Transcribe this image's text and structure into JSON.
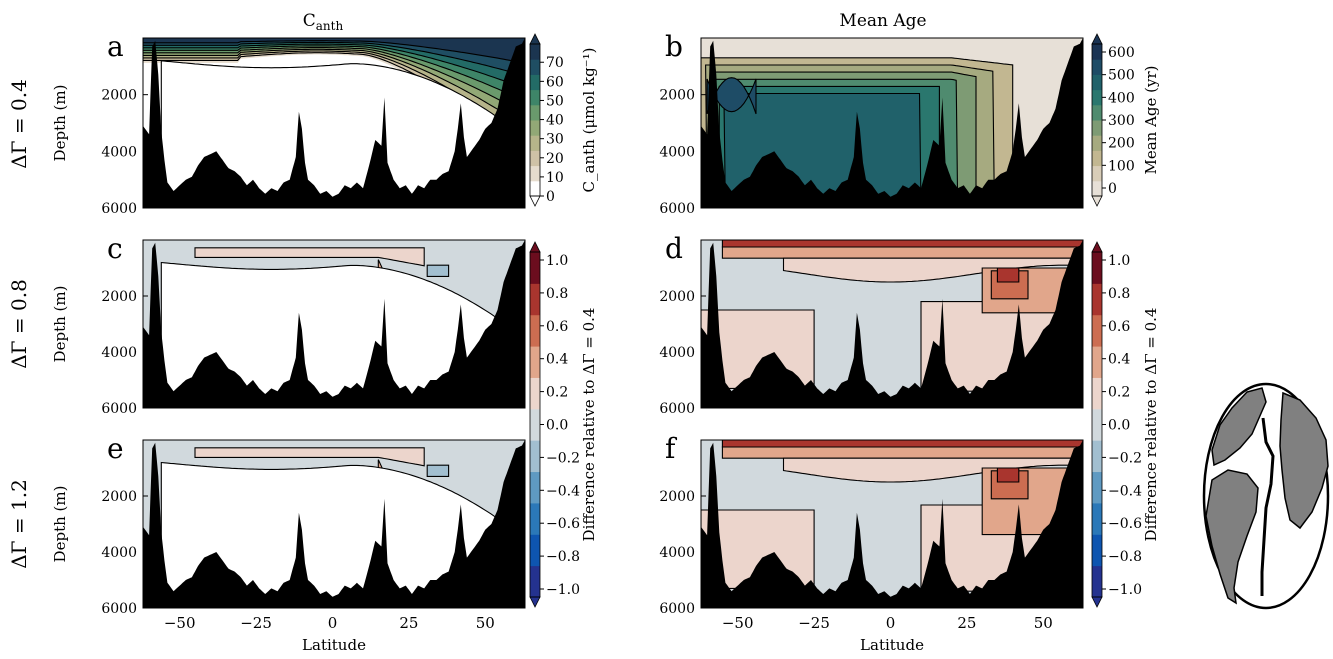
{
  "column_titles": {
    "canth_main": "C",
    "canth_sub": "anth",
    "mean_age": "Mean Age"
  },
  "row_labels": [
    "ΔΓ = 0.4",
    "ΔΓ = 0.8",
    "ΔΓ = 1.2"
  ],
  "colorbars": {
    "canth": {
      "label": "C_anth (μmol kg⁻¹)",
      "ticks": [
        "0",
        "10",
        "20",
        "30",
        "40",
        "50",
        "60",
        "70"
      ],
      "colors": [
        "#ffffff",
        "#e6dccd",
        "#cfc2a6",
        "#b6b48a",
        "#92a876",
        "#6a9a6c",
        "#3e8568",
        "#236b66",
        "#1f4e63",
        "#1b3550"
      ]
    },
    "age": {
      "label": "Mean Age (yr)",
      "ticks": [
        "0",
        "100",
        "200",
        "300",
        "400",
        "500",
        "600"
      ],
      "colors": [
        "#e7e0d7",
        "#d8cdb8",
        "#c2b791",
        "#a6aa80",
        "#7e9b74",
        "#4f8b6f",
        "#2a776e",
        "#20616a",
        "#1e4c66",
        "#1a3454"
      ]
    },
    "diff": {
      "label": "Difference relative to ΔΓ = 0.4",
      "ticks": [
        "−1.0",
        "−0.8",
        "−0.6",
        "−0.4",
        "−0.2",
        "0.0",
        "0.2",
        "0.4",
        "0.6",
        "0.8",
        "1.0"
      ],
      "colors": [
        "#24328f",
        "#0e55b0",
        "#2b78b8",
        "#5f9ac2",
        "#a2bfd0",
        "#d1d9dd",
        "#ecd5cc",
        "#e1a68b",
        "#cc6d51",
        "#a9352e",
        "#6b0d1e"
      ]
    }
  },
  "chart_data": [
    {
      "type": "heatmap",
      "panel": "a",
      "title": "C_anth",
      "row": "ΔΓ = 0.4",
      "ylabel": "Depth (m)",
      "xlabel": "",
      "xlim": [
        -62,
        63
      ],
      "ylim": [
        6000,
        0
      ],
      "xticks": [
        -50,
        -25,
        0,
        25,
        50
      ],
      "yticks": [
        2000,
        4000,
        6000
      ],
      "colorbar": "canth"
    },
    {
      "type": "heatmap",
      "panel": "b",
      "title": "Mean Age",
      "row": "ΔΓ = 0.4",
      "ylabel": "",
      "xlabel": "",
      "xlim": [
        -62,
        63
      ],
      "ylim": [
        6000,
        0
      ],
      "xticks": [
        -50,
        -25,
        0,
        25,
        50
      ],
      "yticks": [
        2000,
        4000,
        6000
      ],
      "colorbar": "age"
    },
    {
      "type": "heatmap",
      "panel": "c",
      "row": "ΔΓ = 0.8",
      "ylabel": "Depth (m)",
      "xlabel": "",
      "xlim": [
        -62,
        63
      ],
      "ylim": [
        6000,
        0
      ],
      "xticks": [
        -50,
        -25,
        0,
        25,
        50
      ],
      "yticks": [
        2000,
        4000,
        6000
      ],
      "colorbar": "diff"
    },
    {
      "type": "heatmap",
      "panel": "d",
      "row": "ΔΓ = 0.8",
      "ylabel": "",
      "xlabel": "",
      "xlim": [
        -62,
        63
      ],
      "ylim": [
        6000,
        0
      ],
      "xticks": [
        -50,
        -25,
        0,
        25,
        50
      ],
      "yticks": [
        2000,
        4000,
        6000
      ],
      "colorbar": "diff"
    },
    {
      "type": "heatmap",
      "panel": "e",
      "row": "ΔΓ = 1.2",
      "ylabel": "Depth (m)",
      "xlabel": "Latitude",
      "xlim": [
        -62,
        63
      ],
      "ylim": [
        6000,
        0
      ],
      "xticks": [
        -50,
        -25,
        0,
        25,
        50
      ],
      "yticks": [
        2000,
        4000,
        6000
      ],
      "colorbar": "diff"
    },
    {
      "type": "heatmap",
      "panel": "f",
      "row": "ΔΓ = 1.2",
      "ylabel": "",
      "xlabel": "Latitude",
      "xlim": [
        -62,
        63
      ],
      "ylim": [
        6000,
        0
      ],
      "xticks": [
        -50,
        -25,
        0,
        25,
        50
      ],
      "yticks": [
        2000,
        4000,
        6000
      ],
      "colorbar": "diff"
    }
  ],
  "bathymetry_depth_m": {
    "lat": [
      -62,
      -60,
      -59,
      -58,
      -57,
      -56,
      -55,
      -54,
      -52,
      -50,
      -48,
      -46,
      -44,
      -42,
      -40,
      -38,
      -36,
      -34,
      -32,
      -30,
      -28,
      -26,
      -24,
      -22,
      -20,
      -18,
      -16,
      -14,
      -12,
      -11,
      -10,
      -9,
      -8,
      -6,
      -4,
      -2,
      0,
      2,
      4,
      6,
      8,
      10,
      12,
      14,
      16,
      17,
      18,
      20,
      22,
      24,
      26,
      28,
      30,
      32,
      34,
      36,
      38,
      40,
      41,
      42,
      43,
      44,
      46,
      48,
      50,
      52,
      54,
      56,
      58,
      60,
      62,
      63
    ],
    "depth": [
      3100,
      3400,
      300,
      100,
      1300,
      3300,
      4300,
      5100,
      5400,
      5200,
      5000,
      4900,
      4500,
      4200,
      4100,
      4000,
      4300,
      4600,
      4700,
      4900,
      5200,
      5000,
      5300,
      5500,
      5300,
      5400,
      5100,
      5000,
      4200,
      2600,
      3200,
      4400,
      5000,
      5200,
      5500,
      5400,
      5600,
      5500,
      5200,
      5300,
      5100,
      5300,
      4500,
      3600,
      3800,
      2100,
      4400,
      5000,
      5300,
      5200,
      5500,
      5200,
      5300,
      5000,
      5000,
      4800,
      4700,
      4000,
      3200,
      2300,
      3500,
      4200,
      3900,
      3600,
      3200,
      3000,
      2500,
      1500,
      900,
      300,
      200,
      0
    ]
  }
}
